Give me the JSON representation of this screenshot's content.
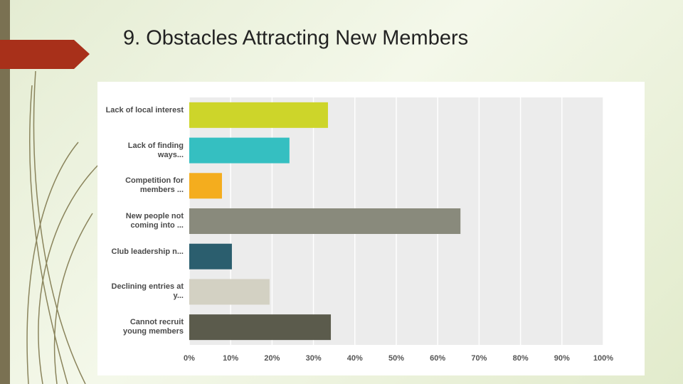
{
  "slide": {
    "title": "9.  Obstacles Attracting New Members"
  },
  "chart_data": {
    "type": "bar",
    "orientation": "horizontal",
    "categories": [
      "Lack of local interest",
      "Lack of finding ways...",
      "Competition for members ...",
      "New people not coming into ...",
      "Club leadership n...",
      "Declining entries at y...",
      "Cannot recruit young members"
    ],
    "values": [
      33.5,
      24.2,
      7.9,
      65.5,
      10.3,
      19.4,
      34.2
    ],
    "colors": [
      "#cdd52a",
      "#35bfc1",
      "#f4ad1e",
      "#898a7c",
      "#2b5e6e",
      "#d3d1c3",
      "#5b5b4c"
    ],
    "xlim": [
      0,
      100
    ],
    "xticks": [
      {
        "value": 0,
        "label": "0%"
      },
      {
        "value": 10,
        "label": "10%"
      },
      {
        "value": 20,
        "label": "20%"
      },
      {
        "value": 30,
        "label": "30%"
      },
      {
        "value": 40,
        "label": "40%"
      },
      {
        "value": 50,
        "label": "50%"
      },
      {
        "value": 60,
        "label": "60%"
      },
      {
        "value": 70,
        "label": "70%"
      },
      {
        "value": 80,
        "label": "80%"
      },
      {
        "value": 90,
        "label": "90%"
      },
      {
        "value": 100,
        "label": "100%"
      }
    ],
    "grid": true
  }
}
